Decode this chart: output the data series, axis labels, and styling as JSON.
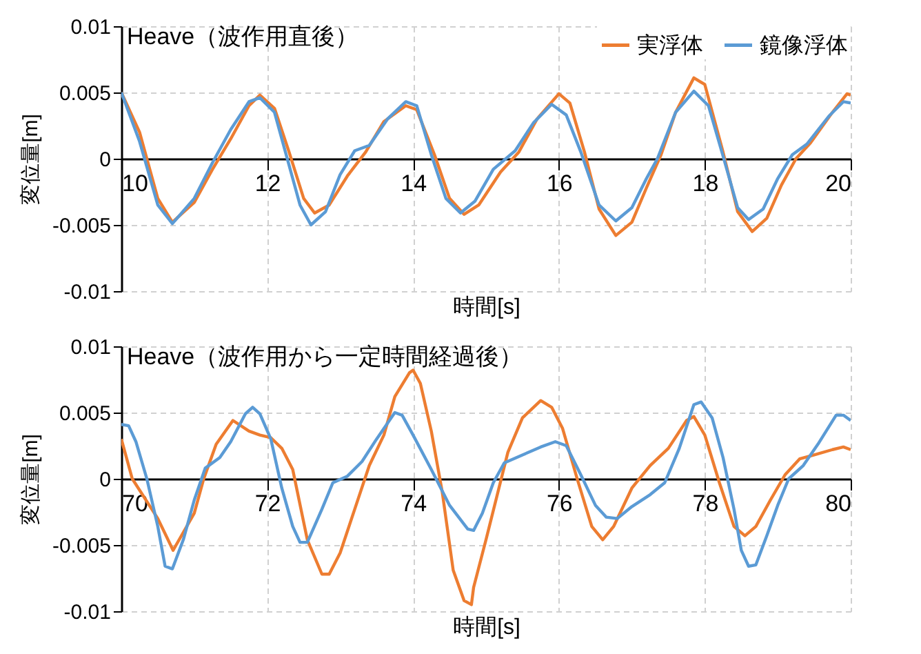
{
  "chart_data": [
    {
      "type": "line",
      "title": "Heave（波作用直後）",
      "xlabel": "時間[s]",
      "ylabel": "変位量[m]",
      "xlim": [
        10,
        20
      ],
      "ylim": [
        -0.01,
        0.01
      ],
      "xticks": [
        10,
        12,
        14,
        16,
        18,
        20
      ],
      "yticks": [
        -0.01,
        -0.005,
        0,
        0.005,
        0.01
      ],
      "grid": true,
      "legend": "top right",
      "series": [
        {
          "name": "実浮体",
          "color": "#ed7d31",
          "x": [
            10.0,
            10.25,
            10.5,
            10.7,
            11.0,
            11.25,
            11.5,
            11.75,
            11.9,
            12.1,
            12.3,
            12.5,
            12.65,
            12.85,
            13.1,
            13.35,
            13.6,
            13.9,
            14.05,
            14.3,
            14.5,
            14.7,
            14.9,
            15.2,
            15.45,
            15.7,
            16.0,
            16.15,
            16.35,
            16.55,
            16.78,
            17.0,
            17.2,
            17.4,
            17.6,
            17.85,
            18.0,
            18.25,
            18.45,
            18.65,
            18.85,
            19.05,
            19.25,
            19.45,
            19.75,
            19.95,
            20.0
          ],
          "values": [
            0.005,
            0.002,
            -0.003,
            -0.0048,
            -0.0033,
            -0.0008,
            0.0015,
            0.004,
            0.0048,
            0.0038,
            0.0005,
            -0.003,
            -0.0041,
            -0.0035,
            -0.0013,
            0.0005,
            0.0028,
            0.004,
            0.0037,
            0.0002,
            -0.003,
            -0.0042,
            -0.0035,
            -0.001,
            0.0005,
            0.003,
            0.0049,
            0.0042,
            0.0005,
            -0.0038,
            -0.0058,
            -0.0048,
            -0.0022,
            0.0003,
            0.0035,
            0.0061,
            0.0056,
            0.0005,
            -0.004,
            -0.0055,
            -0.0045,
            -0.002,
            0.0,
            0.0012,
            0.0035,
            0.0049,
            0.0048
          ]
        },
        {
          "name": "鏡像浮体",
          "color": "#5b9bd5",
          "x": [
            10.0,
            10.25,
            10.5,
            10.7,
            11.0,
            11.25,
            11.5,
            11.75,
            11.9,
            12.1,
            12.25,
            12.45,
            12.6,
            12.8,
            13.0,
            13.2,
            13.4,
            13.65,
            13.9,
            14.05,
            14.25,
            14.45,
            14.65,
            14.85,
            15.1,
            15.4,
            15.65,
            15.9,
            16.1,
            16.3,
            16.55,
            16.78,
            17.0,
            17.2,
            17.35,
            17.6,
            17.85,
            18.05,
            18.25,
            18.45,
            18.6,
            18.8,
            19.0,
            19.2,
            19.4,
            19.7,
            19.9,
            20.0
          ],
          "values": [
            0.005,
            0.0013,
            -0.0035,
            -0.0049,
            -0.003,
            -0.0003,
            0.0022,
            0.0043,
            0.0046,
            0.0035,
            0.0005,
            -0.0035,
            -0.005,
            -0.004,
            -0.0012,
            0.0006,
            0.001,
            0.003,
            0.0043,
            0.004,
            0.0003,
            -0.003,
            -0.0041,
            -0.0032,
            -0.0008,
            0.0006,
            0.0027,
            0.0041,
            0.0033,
            0.0005,
            -0.0035,
            -0.0047,
            -0.0037,
            -0.0015,
            0.0,
            0.0035,
            0.0051,
            0.004,
            0.0002,
            -0.0037,
            -0.0046,
            -0.0038,
            -0.0015,
            0.0003,
            0.0011,
            0.0032,
            0.0043,
            0.0042
          ]
        }
      ]
    },
    {
      "type": "line",
      "title": "Heave（波作用から一定時間経過後）",
      "xlabel": "時間[s]",
      "ylabel": "変位量[m]",
      "xlim": [
        70,
        80
      ],
      "ylim": [
        -0.01,
        0.01
      ],
      "xticks": [
        70,
        72,
        74,
        76,
        78,
        80
      ],
      "yticks": [
        -0.01,
        -0.005,
        0,
        0.005,
        0.01
      ],
      "grid": true,
      "series": [
        {
          "color": "#ed7d31",
          "x": [
            70.0,
            70.15,
            70.5,
            70.71,
            71.0,
            71.13,
            71.3,
            71.53,
            71.75,
            71.9,
            72.05,
            72.2,
            72.35,
            72.55,
            72.75,
            72.85,
            73.0,
            73.2,
            73.4,
            73.6,
            73.75,
            73.95,
            74.0,
            74.1,
            74.25,
            74.4,
            74.55,
            74.7,
            74.8,
            74.83,
            75.0,
            75.15,
            75.3,
            75.5,
            75.75,
            75.9,
            76.05,
            76.25,
            76.45,
            76.6,
            76.75,
            77.0,
            77.25,
            77.5,
            77.75,
            77.85,
            78.0,
            78.2,
            78.4,
            78.55,
            78.7,
            78.9,
            79.1,
            79.3,
            79.5,
            79.75,
            79.9,
            80.0
          ],
          "values": [
            0.003,
            0.0,
            -0.003,
            -0.0054,
            -0.0026,
            0.0,
            0.0026,
            0.0044,
            0.0036,
            0.0033,
            0.0031,
            0.0023,
            0.0007,
            -0.0046,
            -0.0072,
            -0.0072,
            -0.0056,
            -0.0023,
            0.001,
            0.0033,
            0.0062,
            0.008,
            0.0082,
            0.0072,
            0.0036,
            -0.001,
            -0.0069,
            -0.0092,
            -0.0095,
            -0.0082,
            -0.0046,
            -0.0013,
            0.002,
            0.0046,
            0.0059,
            0.0054,
            0.0038,
            0.0,
            -0.0036,
            -0.0046,
            -0.0036,
            -0.0007,
            0.001,
            0.0023,
            0.0044,
            0.0047,
            0.0033,
            -0.0003,
            -0.0036,
            -0.0043,
            -0.0036,
            -0.0016,
            0.0003,
            0.0015,
            0.0018,
            0.0022,
            0.0024,
            0.0022
          ]
        },
        {
          "color": "#5b9bd5",
          "x": [
            70.0,
            70.1,
            70.2,
            70.35,
            70.5,
            70.6,
            70.7,
            70.85,
            71.0,
            71.15,
            71.35,
            71.5,
            71.7,
            71.8,
            71.9,
            72.05,
            72.2,
            72.35,
            72.45,
            72.55,
            72.75,
            72.9,
            73.1,
            73.3,
            73.5,
            73.75,
            73.85,
            74.0,
            74.25,
            74.5,
            74.75,
            74.83,
            74.95,
            75.1,
            75.25,
            75.5,
            75.75,
            75.95,
            76.1,
            76.3,
            76.5,
            76.65,
            76.8,
            77.0,
            77.25,
            77.45,
            77.65,
            77.85,
            77.95,
            78.1,
            78.25,
            78.4,
            78.5,
            78.6,
            78.7,
            78.85,
            79.0,
            79.15,
            79.35,
            79.55,
            79.8,
            79.9,
            80.0
          ],
          "values": [
            0.0041,
            0.004,
            0.0028,
            0.0,
            -0.0036,
            -0.0066,
            -0.0068,
            -0.0046,
            -0.0016,
            0.0008,
            0.0016,
            0.0028,
            0.0049,
            0.0054,
            0.0049,
            0.003,
            -0.0007,
            -0.0036,
            -0.0048,
            -0.0048,
            -0.0023,
            -0.0003,
            0.0002,
            0.0013,
            0.003,
            0.005,
            0.0048,
            0.0033,
            0.0007,
            -0.002,
            -0.0038,
            -0.0039,
            -0.0026,
            -0.0003,
            0.0012,
            0.0018,
            0.0024,
            0.0028,
            0.0025,
            0.0003,
            -0.002,
            -0.0029,
            -0.003,
            -0.0021,
            -0.0012,
            -0.0003,
            0.0023,
            0.0056,
            0.0058,
            0.0046,
            0.0016,
            -0.0023,
            -0.0054,
            -0.0066,
            -0.0065,
            -0.0043,
            -0.002,
            0.0,
            0.001,
            0.0026,
            0.0048,
            0.0048,
            0.0044
          ]
        }
      ]
    }
  ]
}
